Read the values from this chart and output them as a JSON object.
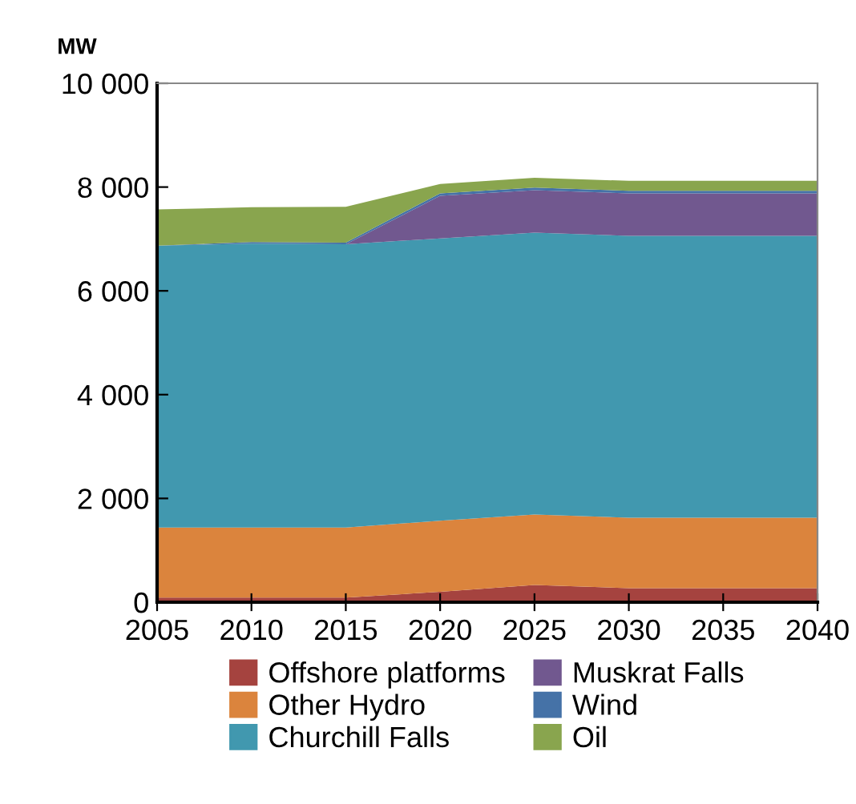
{
  "chart_data": {
    "type": "area",
    "stacked": true,
    "ylabel": "MW",
    "x": [
      2005,
      2010,
      2015,
      2020,
      2025,
      2030,
      2035,
      2040
    ],
    "xlim": [
      2005,
      2040
    ],
    "xticks": [
      2005,
      2010,
      2015,
      2020,
      2025,
      2030,
      2035,
      2040
    ],
    "ylim": [
      0,
      10000
    ],
    "yticks": [
      {
        "value": 0,
        "label": "0"
      },
      {
        "value": 2000,
        "label": "2 000"
      },
      {
        "value": 4000,
        "label": "4 000"
      },
      {
        "value": 6000,
        "label": "6 000"
      },
      {
        "value": 8000,
        "label": "8 000"
      },
      {
        "value": 10000,
        "label": "10 000"
      }
    ],
    "grid": false,
    "legend": "bottom",
    "series": [
      {
        "name": "Offshore platforms",
        "color": "#a5433f",
        "values": [
          90,
          90,
          90,
          200,
          330,
          270,
          270,
          270
        ]
      },
      {
        "name": "Other Hydro",
        "color": "#db843d",
        "values": [
          1350,
          1350,
          1350,
          1370,
          1360,
          1360,
          1360,
          1360
        ]
      },
      {
        "name": "Churchill Falls",
        "color": "#4198af",
        "values": [
          5430,
          5470,
          5460,
          5440,
          5430,
          5430,
          5430,
          5430
        ]
      },
      {
        "name": "Muskrat Falls",
        "color": "#71588f",
        "values": [
          0,
          0,
          0,
          820,
          820,
          820,
          820,
          820
        ]
      },
      {
        "name": "Wind",
        "color": "#4572a7",
        "values": [
          0,
          30,
          30,
          50,
          50,
          50,
          50,
          50
        ]
      },
      {
        "name": "Oil",
        "color": "#89a54e",
        "values": [
          700,
          670,
          690,
          180,
          190,
          190,
          190,
          190
        ]
      }
    ]
  }
}
